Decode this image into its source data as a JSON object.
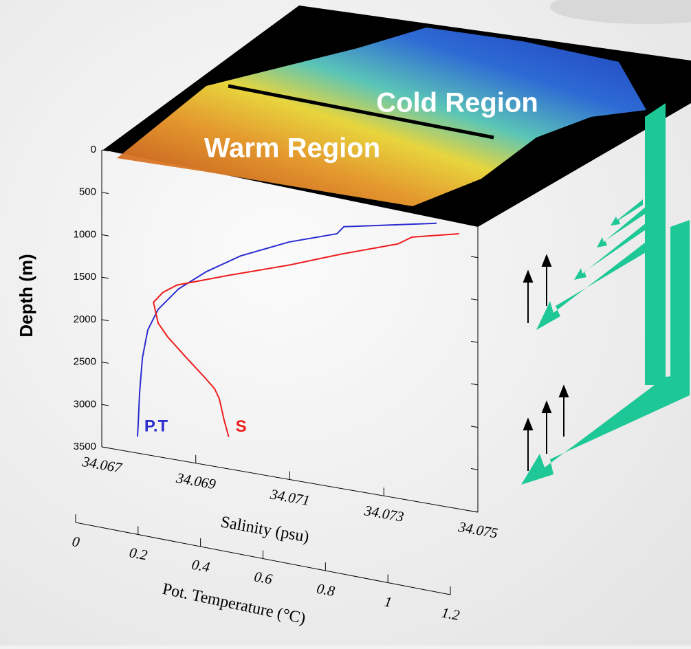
{
  "chart_data": {
    "type": "profile",
    "annotations": [
      "Cold Region",
      "Warm Region"
    ],
    "y_label": "Depth (m)",
    "ylim": [
      0,
      3500
    ],
    "yticks": [
      0,
      500,
      1000,
      1500,
      2000,
      2500,
      3000,
      3500
    ],
    "x_label": "Salinity (psu)",
    "xlim": [
      34.067,
      34.075
    ],
    "xticks": [
      34.067,
      34.069,
      34.071,
      34.073,
      34.075
    ],
    "x2_label": "Pot. Temperature (°C)",
    "x2lim": [
      0,
      1.2
    ],
    "x2ticks": [
      0,
      0.2,
      0.4,
      0.6,
      0.8,
      1,
      1.2
    ],
    "series": [
      {
        "name": "P.T",
        "color": "#2b2bd0",
        "axis": "x2",
        "y": [
          180,
          410,
          507,
          703,
          964,
          1220,
          1480,
          1765,
          2029,
          2365,
          2776,
          3183,
          3306
        ],
        "values": [
          1.156,
          0.859,
          0.837,
          0.683,
          0.529,
          0.419,
          0.33,
          0.264,
          0.231,
          0.214,
          0.205,
          0.2,
          0.198
        ]
      },
      {
        "name": "S",
        "color": "#ee1c1c",
        "y": [
          257,
          393,
          502,
          737,
          971,
          1219,
          1439,
          1555,
          1690,
          1927,
          2068,
          2276,
          2476,
          2584,
          2691,
          2928,
          3123
        ],
        "values": [
          34.0746,
          34.0736,
          34.0733,
          34.0721,
          34.071,
          34.0697,
          34.0686,
          34.0683,
          34.0681,
          34.0682,
          34.0684,
          34.0688,
          34.0692,
          34.0694,
          34.0695,
          34.0696,
          34.0697
        ]
      }
    ]
  }
}
